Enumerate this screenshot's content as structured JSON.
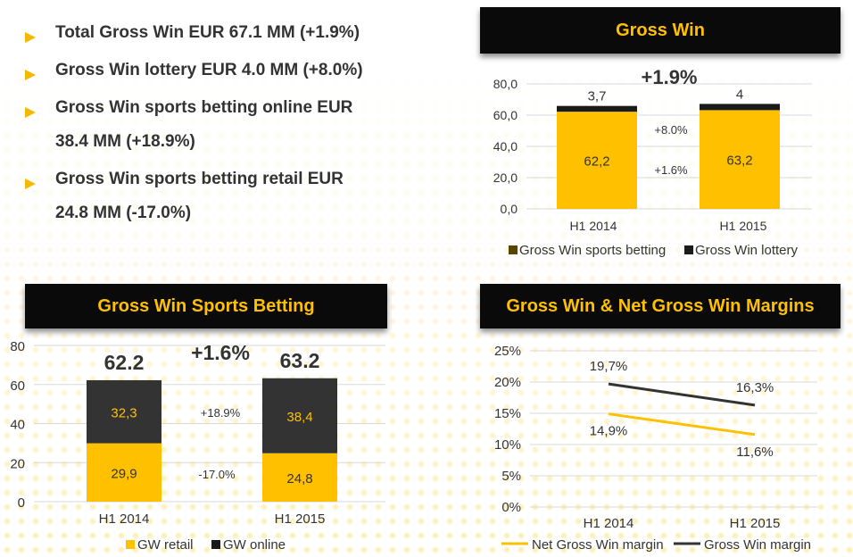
{
  "bullets": [
    "Total Gross Win EUR 67.1 MM (+1.9%)",
    "Gross Win lottery EUR 4.0 MM (+8.0%)",
    "Gross Win sports betting online EUR\n38.4 MM (+18.9%)",
    "Gross Win sports betting retail EUR\n24.8 MM (-17.0%)"
  ],
  "colors": {
    "accent": "#ffc000",
    "dark": "#333333",
    "black": "#1a1a1a",
    "panel_header": "#0a0a0a"
  },
  "chart_data": [
    {
      "type": "bar",
      "title": "Gross Win",
      "categories": [
        "H1 2014",
        "H1 2015"
      ],
      "series": [
        {
          "name": "Gross Win sports betting",
          "values": [
            62.2,
            63.2
          ],
          "labels": [
            "62,2",
            "63,2"
          ]
        },
        {
          "name": "Gross Win lottery",
          "values": [
            3.7,
            4.0
          ],
          "labels": [
            "3,7",
            "4"
          ]
        }
      ],
      "ylim": [
        0,
        80
      ],
      "yticks": [
        "0,0",
        "20,0",
        "40,0",
        "60,0",
        "80,0"
      ],
      "annotations": [
        "+1.9%",
        "+8.0%",
        "+1.6%"
      ],
      "legend": "bottom"
    },
    {
      "type": "bar",
      "title": "Gross Win Sports Betting",
      "categories": [
        "H1 2014",
        "H1 2015"
      ],
      "series": [
        {
          "name": "GW retail",
          "values": [
            29.9,
            24.8
          ],
          "labels": [
            "29,9",
            "24,8"
          ]
        },
        {
          "name": "GW online",
          "values": [
            32.3,
            38.4
          ],
          "labels": [
            "32,3",
            "38,4"
          ]
        }
      ],
      "totals": [
        "62.2",
        "63.2"
      ],
      "ylim": [
        0,
        80
      ],
      "yticks": [
        "0",
        "20",
        "40",
        "60",
        "80"
      ],
      "annotations": [
        "+1.6%",
        "+18.9%",
        "-17.0%"
      ],
      "legend": "bottom"
    },
    {
      "type": "line",
      "title": "Gross Win & Net Gross Win Margins",
      "categories": [
        "H1 2014",
        "H1 2015"
      ],
      "series": [
        {
          "name": "Net Gross Win margin",
          "values": [
            14.9,
            11.6
          ],
          "labels": [
            "14,9%",
            "11,6%"
          ]
        },
        {
          "name": "Gross Win margin",
          "values": [
            19.7,
            16.3
          ],
          "labels": [
            "19,7%",
            "16,3%"
          ]
        }
      ],
      "ylim": [
        0,
        25
      ],
      "yticks": [
        "0%",
        "5%",
        "10%",
        "15%",
        "20%",
        "25%"
      ],
      "legend": "bottom"
    }
  ]
}
